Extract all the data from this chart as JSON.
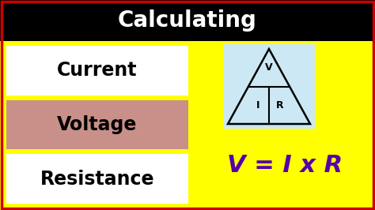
{
  "title": "Calculating",
  "title_bg": "#000000",
  "title_color": "#ffffff",
  "main_bg": "#ffff00",
  "border_color": "#cc0000",
  "labels": [
    "Current",
    "Voltage",
    "Resistance"
  ],
  "label_bg_colors": [
    "#ffffff",
    "#c9908a",
    "#ffffff"
  ],
  "label_text_color": "#000000",
  "formula": "V = I x R",
  "formula_color": "#5500aa",
  "triangle_bg": "#cce8f4",
  "triangle_border": "#000000",
  "figsize": [
    4.74,
    2.66
  ],
  "dpi": 100,
  "title_fontsize": 20,
  "label_fontsize": 17,
  "formula_fontsize": 22
}
